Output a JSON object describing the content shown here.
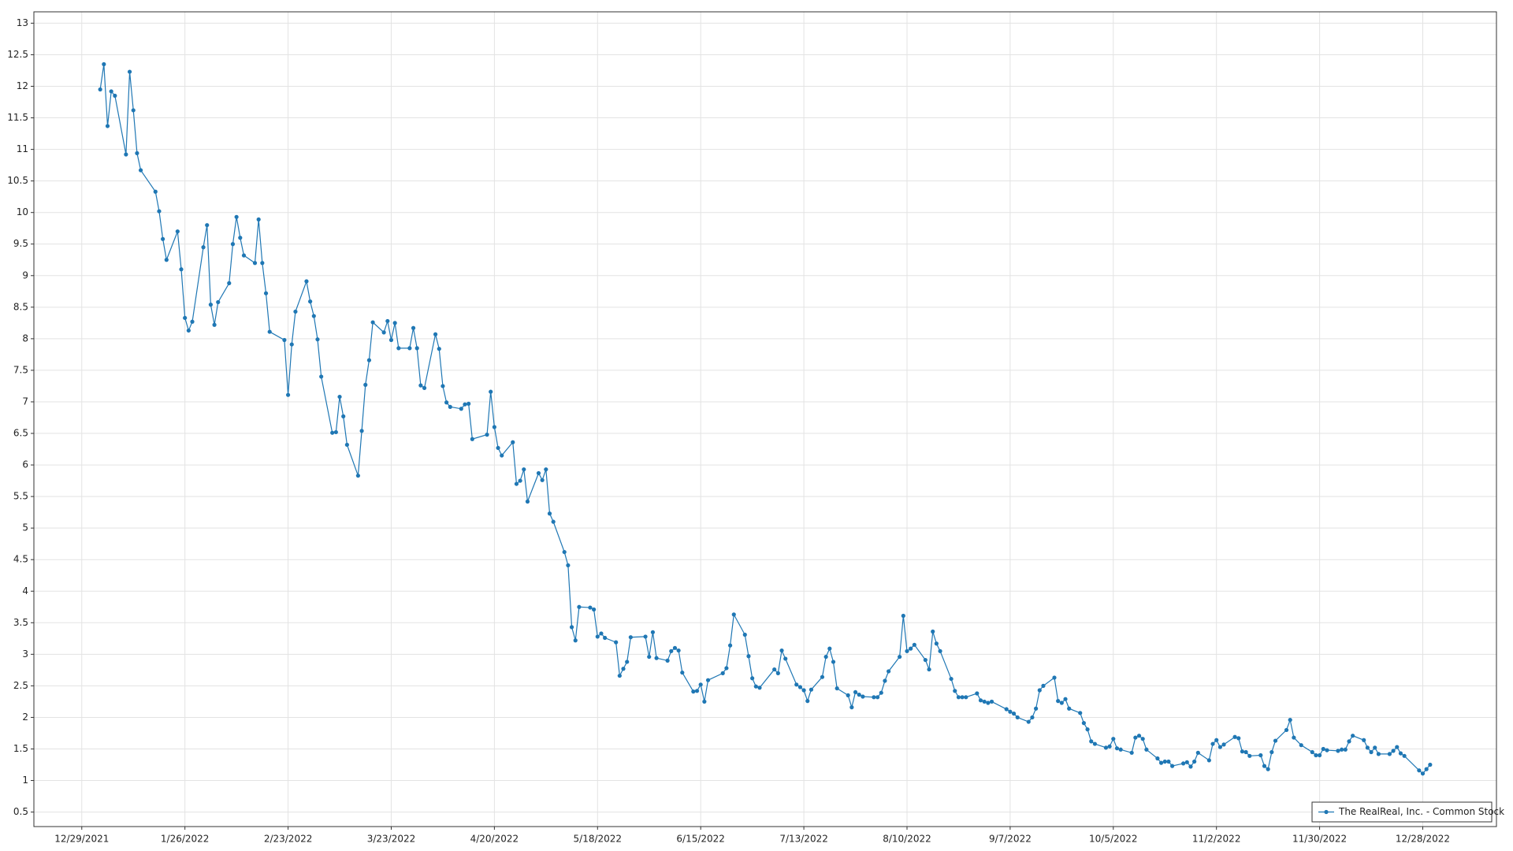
{
  "chart_data": {
    "type": "line",
    "series": [
      {
        "name": "The RealReal, Inc. - Common Stock",
        "color": "#1f77b4",
        "values": [
          11.95,
          12.35,
          11.37,
          11.92,
          11.85,
          10.92,
          12.23,
          11.62,
          10.94,
          10.67,
          10.33,
          10.02,
          9.58,
          9.25,
          9.7,
          9.1,
          8.33,
          8.13,
          8.27,
          9.45,
          9.8,
          8.54,
          8.22,
          8.58,
          8.88,
          9.5,
          9.93,
          9.6,
          9.32,
          9.2,
          9.89,
          9.2,
          8.72,
          8.11,
          7.98,
          7.11,
          7.91,
          8.43,
          8.91,
          8.59,
          8.36,
          7.99,
          7.4,
          6.51,
          6.52,
          7.08,
          6.77,
          6.32,
          5.83,
          6.54,
          7.27,
          7.66,
          8.26,
          8.1,
          8.28,
          7.98,
          8.25,
          7.85,
          7.85,
          8.17,
          7.85,
          7.26,
          7.22,
          8.07,
          7.84,
          7.25,
          6.99,
          6.92,
          6.89,
          6.96,
          6.97,
          6.41,
          6.48,
          7.16,
          6.6,
          6.27,
          6.15,
          6.36,
          5.7,
          5.75,
          5.93,
          5.42,
          5.87,
          5.76,
          5.93,
          5.23,
          5.1,
          4.62,
          4.41,
          3.43,
          3.22,
          3.75,
          3.74,
          3.71,
          3.28,
          3.33,
          3.26,
          3.19,
          2.66,
          2.77,
          2.88,
          3.27,
          3.28,
          2.96,
          3.35,
          2.94,
          2.9,
          3.05,
          3.1,
          3.06,
          2.71,
          2.41,
          2.42,
          2.52,
          2.25,
          2.59,
          2.7,
          2.78,
          3.14,
          3.63,
          3.31,
          2.97,
          2.62,
          2.49,
          2.47,
          2.76,
          2.7,
          3.06,
          2.93,
          2.52,
          2.48,
          2.43,
          2.26,
          2.44,
          2.64,
          2.96,
          3.09,
          2.88,
          2.46,
          2.35,
          2.16,
          2.4,
          2.36,
          2.33,
          2.32,
          2.32,
          2.39,
          2.58,
          2.73,
          2.96,
          3.61,
          3.05,
          3.09,
          3.15,
          2.91,
          2.76,
          3.36,
          3.17,
          3.05,
          2.61,
          2.42,
          2.32,
          2.32,
          2.32,
          2.38,
          2.27,
          2.25,
          2.23,
          2.25,
          2.13,
          2.09,
          2.06,
          2.0,
          1.93,
          2.0,
          2.14,
          2.43,
          2.5,
          2.63,
          2.26,
          2.23,
          2.29,
          2.14,
          2.07,
          1.91,
          1.81,
          1.62,
          1.58,
          1.52,
          1.54,
          1.66,
          1.51,
          1.49,
          1.44,
          1.68,
          1.71,
          1.66,
          1.49,
          1.35,
          1.28,
          1.3,
          1.3,
          1.23,
          1.27,
          1.29,
          1.22,
          1.3,
          1.44,
          1.32,
          1.58,
          1.64,
          1.53,
          1.57,
          1.69,
          1.67,
          1.46,
          1.45,
          1.39,
          1.4,
          1.23,
          1.18,
          1.45,
          1.63,
          1.8,
          1.96,
          1.68,
          1.56,
          1.45,
          1.4,
          1.4,
          1.5,
          1.48,
          1.47,
          1.49,
          1.49,
          1.62,
          1.71,
          1.64,
          1.52,
          1.45,
          1.52,
          1.42,
          1.42,
          1.47,
          1.53,
          1.43,
          1.39,
          1.16,
          1.11,
          1.18,
          1.25
        ]
      }
    ],
    "x": [
      "1/3/2022",
      "1/4/2022",
      "1/5/2022",
      "1/6/2022",
      "1/7/2022",
      "1/10/2022",
      "1/11/2022",
      "1/12/2022",
      "1/13/2022",
      "1/14/2022",
      "1/18/2022",
      "1/19/2022",
      "1/20/2022",
      "1/21/2022",
      "1/24/2022",
      "1/25/2022",
      "1/26/2022",
      "1/27/2022",
      "1/28/2022",
      "1/31/2022",
      "2/1/2022",
      "2/2/2022",
      "2/3/2022",
      "2/4/2022",
      "2/7/2022",
      "2/8/2022",
      "2/9/2022",
      "2/10/2022",
      "2/11/2022",
      "2/14/2022",
      "2/15/2022",
      "2/16/2022",
      "2/17/2022",
      "2/18/2022",
      "2/22/2022",
      "2/23/2022",
      "2/24/2022",
      "2/25/2022",
      "2/28/2022",
      "3/1/2022",
      "3/2/2022",
      "3/3/2022",
      "3/4/2022",
      "3/7/2022",
      "3/8/2022",
      "3/9/2022",
      "3/10/2022",
      "3/11/2022",
      "3/14/2022",
      "3/15/2022",
      "3/16/2022",
      "3/17/2022",
      "3/18/2022",
      "3/21/2022",
      "3/22/2022",
      "3/23/2022",
      "3/24/2022",
      "3/25/2022",
      "3/28/2022",
      "3/29/2022",
      "3/30/2022",
      "3/31/2022",
      "4/1/2022",
      "4/4/2022",
      "4/5/2022",
      "4/6/2022",
      "4/7/2022",
      "4/8/2022",
      "4/11/2022",
      "4/12/2022",
      "4/13/2022",
      "4/14/2022",
      "4/18/2022",
      "4/19/2022",
      "4/20/2022",
      "4/21/2022",
      "4/22/2022",
      "4/25/2022",
      "4/26/2022",
      "4/27/2022",
      "4/28/2022",
      "4/29/2022",
      "5/2/2022",
      "5/3/2022",
      "5/4/2022",
      "5/5/2022",
      "5/6/2022",
      "5/9/2022",
      "5/10/2022",
      "5/11/2022",
      "5/12/2022",
      "5/13/2022",
      "5/16/2022",
      "5/17/2022",
      "5/18/2022",
      "5/19/2022",
      "5/20/2022",
      "5/23/2022",
      "5/24/2022",
      "5/25/2022",
      "5/26/2022",
      "5/27/2022",
      "5/31/2022",
      "6/1/2022",
      "6/2/2022",
      "6/3/2022",
      "6/6/2022",
      "6/7/2022",
      "6/8/2022",
      "6/9/2022",
      "6/10/2022",
      "6/13/2022",
      "6/14/2022",
      "6/15/2022",
      "6/16/2022",
      "6/17/2022",
      "6/21/2022",
      "6/22/2022",
      "6/23/2022",
      "6/24/2022",
      "6/27/2022",
      "6/28/2022",
      "6/29/2022",
      "6/30/2022",
      "7/1/2022",
      "7/5/2022",
      "7/6/2022",
      "7/7/2022",
      "7/8/2022",
      "7/11/2022",
      "7/12/2022",
      "7/13/2022",
      "7/14/2022",
      "7/15/2022",
      "7/18/2022",
      "7/19/2022",
      "7/20/2022",
      "7/21/2022",
      "7/22/2022",
      "7/25/2022",
      "7/26/2022",
      "7/27/2022",
      "7/28/2022",
      "7/29/2022",
      "8/1/2022",
      "8/2/2022",
      "8/3/2022",
      "8/4/2022",
      "8/5/2022",
      "8/8/2022",
      "8/9/2022",
      "8/10/2022",
      "8/11/2022",
      "8/12/2022",
      "8/15/2022",
      "8/16/2022",
      "8/17/2022",
      "8/18/2022",
      "8/19/2022",
      "8/22/2022",
      "8/23/2022",
      "8/24/2022",
      "8/25/2022",
      "8/26/2022",
      "8/29/2022",
      "8/30/2022",
      "8/31/2022",
      "9/1/2022",
      "9/2/2022",
      "9/6/2022",
      "9/7/2022",
      "9/8/2022",
      "9/9/2022",
      "9/12/2022",
      "9/13/2022",
      "9/14/2022",
      "9/15/2022",
      "9/16/2022",
      "9/19/2022",
      "9/20/2022",
      "9/21/2022",
      "9/22/2022",
      "9/23/2022",
      "9/26/2022",
      "9/27/2022",
      "9/28/2022",
      "9/29/2022",
      "9/30/2022",
      "10/3/2022",
      "10/4/2022",
      "10/5/2022",
      "10/6/2022",
      "10/7/2022",
      "10/10/2022",
      "10/11/2022",
      "10/12/2022",
      "10/13/2022",
      "10/14/2022",
      "10/17/2022",
      "10/18/2022",
      "10/19/2022",
      "10/20/2022",
      "10/21/2022",
      "10/24/2022",
      "10/25/2022",
      "10/26/2022",
      "10/27/2022",
      "10/28/2022",
      "10/31/2022",
      "11/1/2022",
      "11/2/2022",
      "11/3/2022",
      "11/4/2022",
      "11/7/2022",
      "11/8/2022",
      "11/9/2022",
      "11/10/2022",
      "11/11/2022",
      "11/14/2022",
      "11/15/2022",
      "11/16/2022",
      "11/17/2022",
      "11/18/2022",
      "11/21/2022",
      "11/22/2022",
      "11/23/2022",
      "11/25/2022",
      "11/28/2022",
      "11/29/2022",
      "11/30/2022",
      "12/1/2022",
      "12/2/2022",
      "12/5/2022",
      "12/6/2022",
      "12/7/2022",
      "12/8/2022",
      "12/9/2022",
      "12/12/2022",
      "12/13/2022",
      "12/14/2022",
      "12/15/2022",
      "12/16/2022",
      "12/19/2022",
      "12/20/2022",
      "12/21/2022",
      "12/22/2022",
      "12/23/2022",
      "12/27/2022",
      "12/28/2022",
      "12/29/2022",
      "12/30/2022"
    ],
    "xlim": [
      "12/16/2021",
      "1/17/2023"
    ],
    "xticks": [
      "12/29/2021",
      "1/26/2022",
      "2/23/2022",
      "3/23/2022",
      "4/20/2022",
      "5/18/2022",
      "6/15/2022",
      "7/13/2022",
      "8/10/2022",
      "9/7/2022",
      "10/5/2022",
      "11/2/2022",
      "11/30/2022",
      "12/28/2022"
    ],
    "ylim": [
      0.27,
      13.18
    ],
    "yticks": [
      0.5,
      1,
      1.5,
      2,
      2.5,
      3,
      3.5,
      4,
      4.5,
      5,
      5.5,
      6,
      6.5,
      7,
      7.5,
      8,
      8.5,
      9,
      9.5,
      10,
      10.5,
      11,
      11.5,
      12,
      12.5,
      13
    ],
    "grid": true,
    "legend": "bottom-right"
  }
}
